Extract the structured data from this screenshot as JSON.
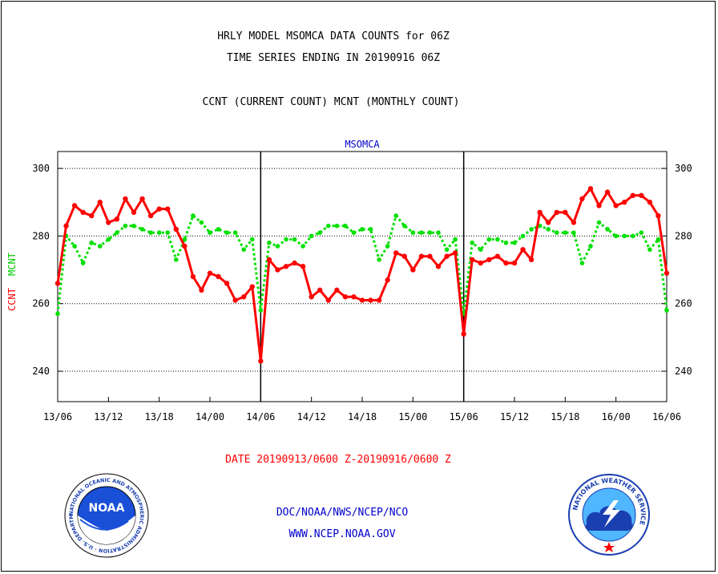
{
  "header": {
    "title_line1": "HRLY MODEL MSOMCA DATA COUNTS for 06Z",
    "title_line2": "TIME SERIES ENDING IN 20190916 06Z",
    "subtitle": "CCNT (CURRENT COUNT) MCNT (MONTHLY COUNT)"
  },
  "footer": {
    "date_range": "DATE 20190913/0600 Z-20190916/0600 Z",
    "org_line": "DOC/NOAA/NWS/NCEP/NCO",
    "url": "WWW.NCEP.NOAA.GOV"
  },
  "logos": {
    "noaa_text": "NOAA",
    "noaa_ring": "NATIONAL OCEANIC AND ATMOSPHERIC ADMINISTRATION · U.S. DEPARTMENT OF COMMERCE ·",
    "nws_ring": "NATIONAL WEATHER SERVICE"
  },
  "colors": {
    "ccnt": "#ff0000",
    "mcnt": "#00e000",
    "text_blue": "#0000cc",
    "text_red": "#ff0000"
  },
  "chart_data": {
    "type": "line",
    "title": "MSOMCA",
    "ylabel_ccnt": "CCNT",
    "ylabel_mcnt": "MCNT",
    "ylim": [
      231,
      305
    ],
    "yticks": [
      240,
      260,
      280,
      300
    ],
    "xlim": [
      0,
      72
    ],
    "xtick_labels": [
      "13/06",
      "13/12",
      "13/18",
      "14/00",
      "14/06",
      "14/12",
      "14/18",
      "15/00",
      "15/06",
      "15/12",
      "15/18",
      "16/00",
      "16/06"
    ],
    "day_dividers": [
      24,
      48
    ],
    "grid": true,
    "series": [
      {
        "name": "CCNT",
        "x": [
          0,
          1,
          2,
          3,
          4,
          5,
          6,
          7,
          8,
          9,
          10,
          11,
          12,
          13,
          14,
          15,
          16,
          17,
          18,
          19,
          20,
          21,
          22,
          23,
          24,
          25,
          26,
          27,
          28,
          29,
          30,
          31,
          32,
          33,
          34,
          35,
          36,
          37,
          38,
          39,
          40,
          41,
          42,
          43,
          44,
          45,
          46,
          47,
          48,
          49,
          50,
          51,
          52,
          53,
          54,
          55,
          56,
          57,
          58,
          59,
          60,
          61,
          62,
          63,
          64,
          65,
          66,
          67,
          68,
          69,
          70,
          71,
          72
        ],
        "values": [
          266,
          283,
          289,
          287,
          286,
          290,
          284,
          285,
          291,
          287,
          291,
          286,
          288,
          288,
          282,
          277,
          268,
          264,
          269,
          268,
          266,
          261,
          262,
          265,
          243,
          273,
          270,
          271,
          272,
          271,
          262,
          264,
          261,
          264,
          262,
          262,
          261,
          261,
          261,
          267,
          275,
          274,
          270,
          274,
          274,
          271,
          274,
          275,
          251,
          273,
          272,
          273,
          274,
          272,
          272,
          276,
          273,
          287,
          284,
          287,
          287,
          284,
          291,
          294,
          289,
          293,
          289,
          290,
          292,
          292,
          290,
          286,
          269
        ]
      },
      {
        "name": "MCNT",
        "x": [
          0,
          1,
          2,
          3,
          4,
          5,
          6,
          7,
          8,
          9,
          10,
          11,
          12,
          13,
          14,
          15,
          16,
          17,
          18,
          19,
          20,
          21,
          22,
          23,
          24,
          25,
          26,
          27,
          28,
          29,
          30,
          31,
          32,
          33,
          34,
          35,
          36,
          37,
          38,
          39,
          40,
          41,
          42,
          43,
          44,
          45,
          46,
          47,
          48,
          49,
          50,
          51,
          52,
          53,
          54,
          55,
          56,
          57,
          58,
          59,
          60,
          61,
          62,
          63,
          64,
          65,
          66,
          67,
          68,
          69,
          70,
          71,
          72
        ],
        "values": [
          257,
          280,
          277,
          272,
          278,
          277,
          279,
          281,
          283,
          283,
          282,
          281,
          281,
          281,
          273,
          279,
          286,
          284,
          281,
          282,
          281,
          281,
          276,
          279,
          258,
          278,
          277,
          279,
          279,
          277,
          280,
          281,
          283,
          283,
          283,
          281,
          282,
          282,
          273,
          277,
          286,
          283,
          281,
          281,
          281,
          281,
          276,
          279,
          257,
          278,
          276,
          279,
          279,
          278,
          278,
          280,
          282,
          283,
          282,
          281,
          281,
          281,
          272,
          277,
          284,
          282,
          280,
          280,
          280,
          281,
          276,
          279,
          258
        ]
      }
    ]
  }
}
